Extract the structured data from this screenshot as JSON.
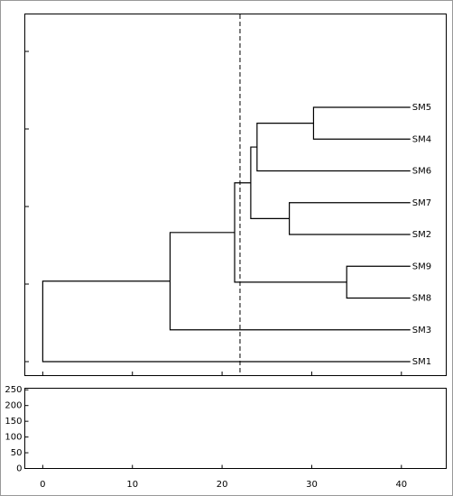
{
  "chart_data": {
    "type": "dendrogram",
    "leaves": [
      "SM5",
      "SM4",
      "SM6",
      "SM7",
      "SM2",
      "SM9",
      "SM8",
      "SM3",
      "SM1"
    ],
    "leaf_height": 41,
    "merges": [
      {
        "left": 0,
        "right": 1,
        "height": 30.2
      },
      {
        "left": 9,
        "right": 2,
        "height": 23.9
      },
      {
        "left": 3,
        "right": 4,
        "height": 27.5
      },
      {
        "left": 10,
        "right": 11,
        "height": 23.2
      },
      {
        "left": 5,
        "right": 6,
        "height": 33.9
      },
      {
        "left": 12,
        "right": 13,
        "height": 21.4
      },
      {
        "left": 14,
        "right": 7,
        "height": 14.2
      },
      {
        "left": 15,
        "right": 8,
        "height": 0
      }
    ],
    "threshold": 22,
    "xlim": [
      -2,
      45
    ],
    "xticks": [
      0,
      10,
      20,
      30,
      40
    ],
    "ylim": [
      0,
      255
    ],
    "yticks": [
      0,
      50,
      100,
      150,
      200,
      250
    ]
  }
}
